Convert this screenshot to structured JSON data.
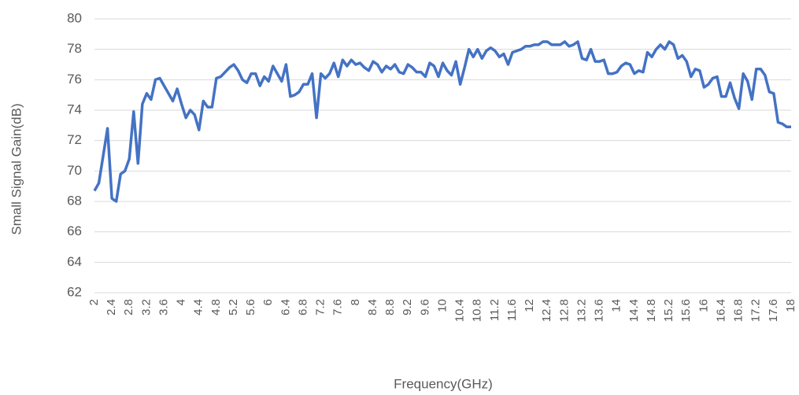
{
  "chart_data": {
    "type": "line",
    "x_label": "Frequency(GHz)",
    "y_label": "Small Signal Gain(dB)",
    "x": [
      2,
      2.1,
      2.2,
      2.3,
      2.4,
      2.5,
      2.6,
      2.7,
      2.8,
      2.9,
      3,
      3.1,
      3.2,
      3.3,
      3.4,
      3.5,
      3.6,
      3.7,
      3.8,
      3.9,
      4,
      4.1,
      4.2,
      4.3,
      4.4,
      4.5,
      4.6,
      4.7,
      4.8,
      4.9,
      5,
      5.1,
      5.2,
      5.3,
      5.4,
      5.5,
      5.6,
      5.7,
      5.8,
      5.9,
      6,
      6.1,
      6.2,
      6.3,
      6.4,
      6.5,
      6.6,
      6.7,
      6.8,
      6.9,
      7,
      7.1,
      7.2,
      7.3,
      7.4,
      7.5,
      7.6,
      7.7,
      7.8,
      7.9,
      8,
      8.1,
      8.2,
      8.3,
      8.4,
      8.5,
      8.6,
      8.7,
      8.8,
      8.9,
      9,
      9.1,
      9.2,
      9.3,
      9.4,
      9.5,
      9.6,
      9.7,
      9.8,
      9.9,
      10,
      10.1,
      10.2,
      10.3,
      10.4,
      10.5,
      10.6,
      10.7,
      10.8,
      10.9,
      11,
      11.1,
      11.2,
      11.3,
      11.4,
      11.5,
      11.6,
      11.7,
      11.8,
      11.9,
      12,
      12.1,
      12.2,
      12.3,
      12.4,
      12.5,
      12.6,
      12.7,
      12.8,
      12.9,
      13,
      13.1,
      13.2,
      13.3,
      13.4,
      13.5,
      13.6,
      13.7,
      13.8,
      13.9,
      14,
      14.1,
      14.2,
      14.3,
      14.4,
      14.5,
      14.6,
      14.7,
      14.8,
      14.9,
      15,
      15.1,
      15.2,
      15.3,
      15.4,
      15.5,
      15.6,
      15.7,
      15.8,
      15.9,
      16,
      16.1,
      16.2,
      16.3,
      16.4,
      16.5,
      16.6,
      16.7,
      16.8,
      16.9,
      17,
      17.1,
      17.2,
      17.3,
      17.4,
      17.5,
      17.6,
      17.7,
      17.8,
      17.9,
      18
    ],
    "series": [
      {
        "color": "#4472c4",
        "values": [
          68.7,
          69.2,
          71.0,
          72.8,
          68.2,
          68.0,
          69.8,
          70.0,
          70.8,
          73.9,
          70.5,
          74.4,
          75.1,
          74.7,
          76.0,
          76.1,
          75.6,
          75.1,
          74.6,
          75.4,
          74.4,
          73.5,
          74.0,
          73.7,
          72.7,
          74.6,
          74.2,
          74.2,
          76.1,
          76.2,
          76.5,
          76.8,
          77.0,
          76.6,
          76.0,
          75.8,
          76.4,
          76.4,
          75.6,
          76.2,
          75.9,
          76.9,
          76.4,
          75.9,
          77.0,
          74.9,
          75.0,
          75.2,
          75.7,
          75.7,
          76.4,
          73.5,
          76.4,
          76.1,
          76.4,
          77.1,
          76.2,
          77.3,
          76.9,
          77.3,
          77.0,
          77.1,
          76.8,
          76.6,
          77.2,
          77.0,
          76.5,
          76.9,
          76.7,
          77.0,
          76.5,
          76.4,
          77.0,
          76.8,
          76.5,
          76.5,
          76.2,
          77.1,
          76.9,
          76.2,
          77.1,
          76.6,
          76.3,
          77.2,
          75.7,
          76.8,
          78.0,
          77.5,
          78.0,
          77.4,
          77.9,
          78.1,
          77.9,
          77.5,
          77.7,
          77.0,
          77.8,
          77.9,
          78.0,
          78.2,
          78.2,
          78.3,
          78.3,
          78.5,
          78.5,
          78.3,
          78.3,
          78.3,
          78.5,
          78.2,
          78.3,
          78.5,
          77.4,
          77.3,
          78.0,
          77.2,
          77.2,
          77.3,
          76.4,
          76.4,
          76.5,
          76.9,
          77.1,
          77.0,
          76.4,
          76.6,
          76.5,
          77.8,
          77.5,
          78.0,
          78.3,
          78.0,
          78.5,
          78.3,
          77.4,
          77.6,
          77.2,
          76.2,
          76.7,
          76.6,
          75.5,
          75.7,
          76.1,
          76.2,
          74.9,
          74.9,
          75.8,
          74.8,
          74.1,
          76.4,
          75.9,
          74.7,
          76.7,
          76.7,
          76.3,
          75.2,
          75.1,
          73.2,
          73.1,
          72.9,
          72.9
        ]
      }
    ],
    "xlim": [
      2,
      18
    ],
    "xticks": [
      2,
      2.4,
      2.8,
      3.2,
      3.6,
      4,
      4.4,
      4.8,
      5.2,
      5.6,
      6,
      6.4,
      6.8,
      7.2,
      7.6,
      8,
      8.4,
      8.8,
      9.2,
      9.6,
      10,
      10.4,
      10.8,
      11.2,
      11.6,
      12,
      12.4,
      12.8,
      13.2,
      13.6,
      14,
      14.4,
      14.8,
      15.2,
      15.6,
      16,
      16.4,
      16.8,
      17.2,
      17.6,
      18
    ],
    "ylim": [
      62,
      80
    ],
    "yticks": [
      62,
      64,
      66,
      68,
      70,
      72,
      74,
      76,
      78,
      80
    ],
    "grid": true
  }
}
